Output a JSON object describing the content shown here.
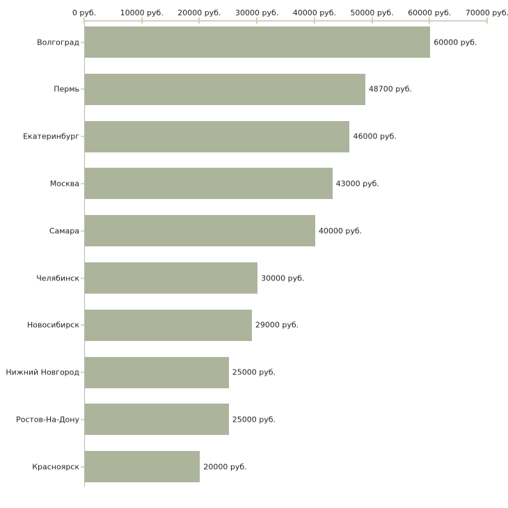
{
  "chart_data": {
    "type": "bar",
    "orientation": "horizontal",
    "categories": [
      "Волгоград",
      "Пермь",
      "Екатеринбург",
      "Москва",
      "Самара",
      "Челябинск",
      "Новосибирск",
      "Нижний Новгород",
      "Ростов-На-Дону",
      "Красноярск"
    ],
    "values": [
      60000,
      48700,
      46000,
      43000,
      40000,
      30000,
      29000,
      25000,
      25000,
      20000
    ],
    "value_labels": [
      "60000 руб.",
      "48700 руб.",
      "46000 руб.",
      "43000 руб.",
      "40000 руб.",
      "30000 руб.",
      "29000 руб.",
      "25000 руб.",
      "25000 руб.",
      "20000 руб."
    ],
    "title": "",
    "xlabel": "",
    "ylabel": "",
    "unit": "руб.",
    "x_axis": {
      "position": "top",
      "min": 0,
      "max": 70000,
      "ticks": [
        0,
        10000,
        20000,
        30000,
        40000,
        50000,
        60000,
        70000
      ],
      "tick_labels": [
        "0 руб.",
        "10000 руб.",
        "20000 руб.",
        "30000 руб.",
        "40000 руб.",
        "50000 руб.",
        "60000 руб.",
        "70000 руб."
      ]
    },
    "grid": false,
    "legend": null,
    "colors": {
      "bar": "#adb49c",
      "x_tick": "#d2d3a6",
      "x_axis_line": "#d2d0c6",
      "y_axis_line": "#b8b7b2",
      "category_tick": "#d8dabc",
      "text": "#222222",
      "background": "#ffffff"
    }
  }
}
